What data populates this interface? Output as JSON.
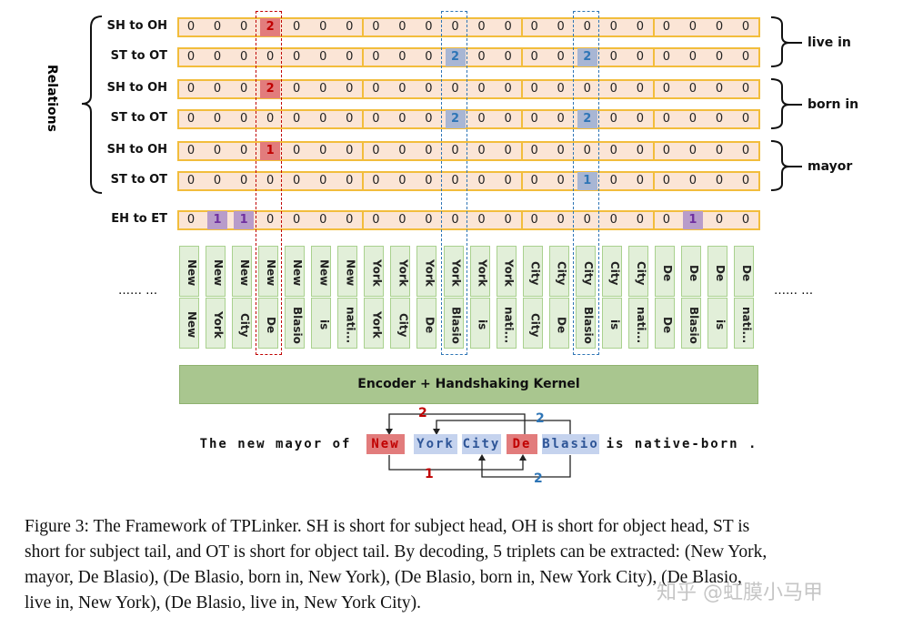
{
  "relations_label": "Relations",
  "rows": [
    {
      "label": "SH to OH",
      "type": "SH",
      "values": [
        0,
        0,
        0,
        2,
        0,
        0,
        0,
        0,
        0,
        0,
        0,
        0,
        0,
        0,
        0,
        0,
        0,
        0,
        0,
        0,
        0,
        0
      ]
    },
    {
      "label": "ST to OT",
      "type": "ST",
      "values": [
        0,
        0,
        0,
        0,
        0,
        0,
        0,
        0,
        0,
        0,
        2,
        0,
        0,
        0,
        0,
        2,
        0,
        0,
        0,
        0,
        0,
        0
      ]
    },
    {
      "label": "SH to OH",
      "type": "SH",
      "values": [
        0,
        0,
        0,
        2,
        0,
        0,
        0,
        0,
        0,
        0,
        0,
        0,
        0,
        0,
        0,
        0,
        0,
        0,
        0,
        0,
        0,
        0
      ]
    },
    {
      "label": "ST to OT",
      "type": "ST",
      "values": [
        0,
        0,
        0,
        0,
        0,
        0,
        0,
        0,
        0,
        0,
        2,
        0,
        0,
        0,
        0,
        2,
        0,
        0,
        0,
        0,
        0,
        0
      ]
    },
    {
      "label": "SH to OH",
      "type": "SH",
      "values": [
        0,
        0,
        0,
        1,
        0,
        0,
        0,
        0,
        0,
        0,
        0,
        0,
        0,
        0,
        0,
        0,
        0,
        0,
        0,
        0,
        0,
        0
      ]
    },
    {
      "label": "ST to OT",
      "type": "ST",
      "values": [
        0,
        0,
        0,
        0,
        0,
        0,
        0,
        0,
        0,
        0,
        0,
        0,
        0,
        0,
        0,
        1,
        0,
        0,
        0,
        0,
        0,
        0
      ]
    },
    {
      "label": "EH to ET",
      "type": "EH",
      "values": [
        0,
        1,
        1,
        0,
        0,
        0,
        0,
        0,
        0,
        0,
        0,
        0,
        0,
        0,
        0,
        0,
        0,
        0,
        0,
        1,
        0,
        0
      ]
    }
  ],
  "relation_names": [
    "live in",
    "born in",
    "mayor"
  ],
  "token_pairs": [
    [
      "New",
      "New"
    ],
    [
      "New",
      "York"
    ],
    [
      "New",
      "City"
    ],
    [
      "New",
      "De"
    ],
    [
      "New",
      "Blasio"
    ],
    [
      "New",
      "is"
    ],
    [
      "New",
      "nati..."
    ],
    [
      "York",
      "York"
    ],
    [
      "York",
      "City"
    ],
    [
      "York",
      "De"
    ],
    [
      "York",
      "Blasio"
    ],
    [
      "York",
      "is"
    ],
    [
      "York",
      "nati..."
    ],
    [
      "City",
      "City"
    ],
    [
      "City",
      "De"
    ],
    [
      "City",
      "Blasio"
    ],
    [
      "City",
      "is"
    ],
    [
      "City",
      "nati..."
    ],
    [
      "De",
      "De"
    ],
    [
      "De",
      "Blasio"
    ],
    [
      "De",
      "is"
    ],
    [
      "De",
      "nati..."
    ]
  ],
  "ellipsis": "…… …",
  "encoder_label": "Encoder + Handshaking Kernel",
  "sentence": [
    {
      "text": "The new mayor of",
      "role": "none"
    },
    {
      "text": "New",
      "role": "head"
    },
    {
      "text": "York",
      "role": "tail"
    },
    {
      "text": "City",
      "role": "tail"
    },
    {
      "text": "De",
      "role": "head"
    },
    {
      "text": "Blasio",
      "role": "tail"
    },
    {
      "text": "is native-born .",
      "role": "none"
    }
  ],
  "arrow_labels": {
    "top_red": "2",
    "top_blue": "2",
    "bottom_red": "1",
    "bottom_blue": "2"
  },
  "colors": {
    "SH": "#e27c7c",
    "ST": "#a8b6d4",
    "EH": "#b89cca",
    "SH_text": "#c00000",
    "ST_text": "#2e75b6",
    "EH_text": "#7030a0",
    "red_dash": "#c00000",
    "blue_dash": "#2e75b6"
  },
  "caption": [
    "Figure 3: The Framework of TPLinker. SH is short for subject head, OH is short for object head, ST is",
    "short for subject tail, and OT is short for object tail. By decoding, 5 triplets can be extracted: (New York,",
    "mayor, De Blasio), (De Blasio, born in, New York), (De Blasio, born in, New York City), (De Blasio,",
    "live in, New York), (De Blasio, live in, New York City)."
  ],
  "watermark": "知乎 @虹膜小马甲"
}
